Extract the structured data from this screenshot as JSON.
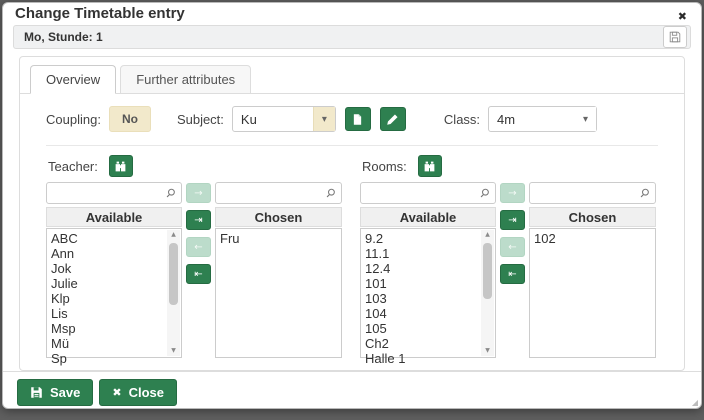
{
  "dialog": {
    "title": "Change Timetable entry",
    "subtitle": "Mo, Stunde: 1"
  },
  "tabs": [
    {
      "label": "Overview",
      "active": true
    },
    {
      "label": "Further attributes",
      "active": false
    }
  ],
  "form": {
    "coupling_label": "Coupling:",
    "coupling_value": "No",
    "subject_label": "Subject:",
    "subject_value": "Ku",
    "class_label": "Class:",
    "class_value": "4m"
  },
  "teacher": {
    "label": "Teacher:",
    "available_header": "Available",
    "chosen_header": "Chosen",
    "available": [
      "ABC",
      "Ann",
      "Jok",
      "Julie",
      "Klp",
      "Lis",
      "Msp",
      "Mü",
      "Sp"
    ],
    "chosen": [
      "Fru"
    ]
  },
  "rooms": {
    "label": "Rooms:",
    "available_header": "Available",
    "chosen_header": "Chosen",
    "available": [
      "9.2",
      "11.1",
      "12.4",
      "101",
      "103",
      "104",
      "105",
      "Ch2",
      "Halle 1"
    ],
    "chosen": [
      "102"
    ]
  },
  "footer": {
    "save_label": "Save",
    "close_label": "Close"
  },
  "icons": {
    "close": "✖",
    "dropdown_arrow": "▾",
    "move_right": "→",
    "move_all_right": "⇥",
    "move_left": "←",
    "move_all_left": "⇤",
    "scroll_up": "▲",
    "scroll_down": "▼",
    "resize": "◢"
  },
  "colors": {
    "accent_green": "#2e8050",
    "pale_green": "#bcdccb",
    "beige": "#f2e9cb"
  }
}
